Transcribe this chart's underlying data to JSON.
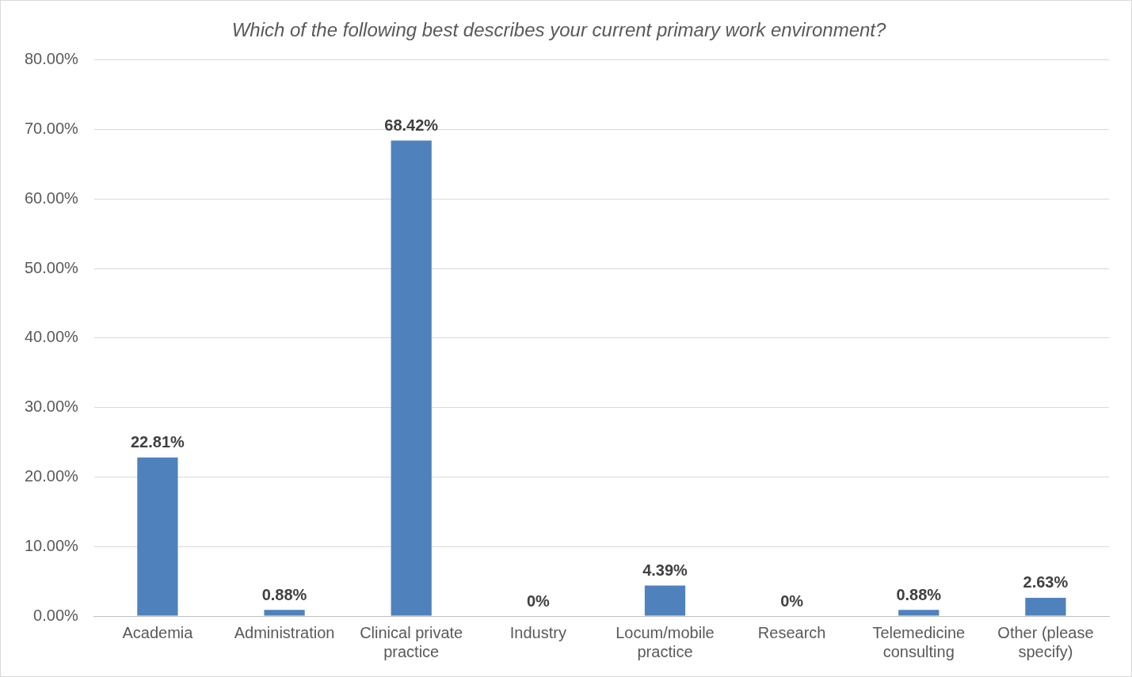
{
  "chart_data": {
    "type": "bar",
    "title": "Which of the following best describes your current primary work environment?",
    "categories": [
      "Academia",
      "Administration",
      "Clinical private practice",
      "Industry",
      "Locum/mobile practice",
      "Research",
      "Telemedicine consulting",
      "Other (please specify)"
    ],
    "values": [
      22.81,
      0.88,
      68.42,
      0,
      4.39,
      0,
      0.88,
      2.63
    ],
    "value_labels": [
      "22.81%",
      "0.88%",
      "68.42%",
      "0%",
      "4.39%",
      "0%",
      "0.88%",
      "2.63%"
    ],
    "color": "#4f81bd",
    "ylim": [
      0,
      80
    ],
    "yticks": [
      {
        "value": 0,
        "label": "0.00%"
      },
      {
        "value": 10,
        "label": "10.00%"
      },
      {
        "value": 20,
        "label": "20.00%"
      },
      {
        "value": 30,
        "label": "30.00%"
      },
      {
        "value": 40,
        "label": "40.00%"
      },
      {
        "value": 50,
        "label": "50.00%"
      },
      {
        "value": 60,
        "label": "60.00%"
      },
      {
        "value": 70,
        "label": "70.00%"
      },
      {
        "value": 80,
        "label": "80.00%"
      }
    ],
    "grid": "y",
    "legend": false
  }
}
